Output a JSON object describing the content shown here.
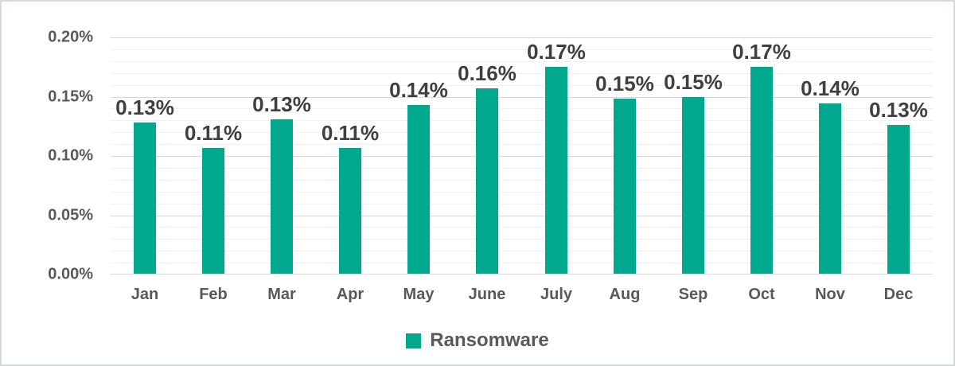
{
  "chart_data": {
    "type": "bar",
    "title": "",
    "categories": [
      "Jan",
      "Feb",
      "Mar",
      "Apr",
      "May",
      "June",
      "July",
      "Aug",
      "Sep",
      "Oct",
      "Nov",
      "Dec"
    ],
    "series": [
      {
        "name": "Ransomware",
        "values": [
          0.128,
          0.107,
          0.131,
          0.107,
          0.143,
          0.157,
          0.175,
          0.148,
          0.15,
          0.175,
          0.144,
          0.126
        ],
        "labels": [
          "0.13%",
          "0.11%",
          "0.13%",
          "0.11%",
          "0.14%",
          "0.16%",
          "0.17%",
          "0.15%",
          "0.15%",
          "0.17%",
          "0.14%",
          "0.13%"
        ],
        "color": "#00A88E"
      }
    ],
    "xlabel": "",
    "ylabel": "",
    "ylim": [
      0,
      0.2
    ],
    "y_major_step": 0.05,
    "y_minor_step": 0.01,
    "y_tick_labels": [
      "0.00%",
      "0.05%",
      "0.10%",
      "0.15%",
      "0.20%"
    ],
    "y_tick_values": [
      0,
      0.05,
      0.1,
      0.15,
      0.2
    ],
    "grid": true,
    "legend_position": "bottom"
  },
  "colors": {
    "bar": "#00A88E",
    "grid_major": "#d9d9d9",
    "grid_minor": "#f1f1f1",
    "tick_text": "#595959",
    "data_label_text": "#3f3f3f",
    "frame_border": "#d6dbde"
  }
}
